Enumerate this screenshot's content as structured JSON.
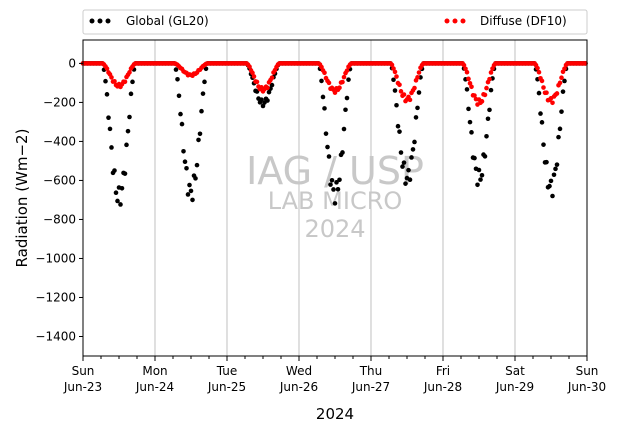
{
  "chart_data": {
    "type": "scatter",
    "xlabel": "2024",
    "ylabel": "Radiation (Wm−2)",
    "ylim": [
      -1500,
      120
    ],
    "yticks": [
      0,
      -200,
      -400,
      -600,
      -800,
      -1000,
      -1200,
      -1400
    ],
    "xlim": [
      "2024-06-23",
      "2024-06-30"
    ],
    "xtick_labels": [
      {
        "day": "Sun",
        "date": "Jun-23"
      },
      {
        "day": "Mon",
        "date": "Jun-24"
      },
      {
        "day": "Tue",
        "date": "Jun-25"
      },
      {
        "day": "Wed",
        "date": "Jun-26"
      },
      {
        "day": "Thu",
        "date": "Jun-27"
      },
      {
        "day": "Fri",
        "date": "Jun-28"
      },
      {
        "day": "Sat",
        "date": "Jun-29"
      },
      {
        "day": "Sun",
        "date": "Jun-30"
      }
    ],
    "grid": "vertical lines at each day",
    "legend_placement": "top, above plot",
    "watermark": [
      "IAG / USP",
      "LAB MICRO",
      "2024"
    ],
    "series": [
      {
        "name": "Global (GL20)",
        "color": "#000000",
        "daily_min": [
          {
            "date": "2024-06-23",
            "min": -690
          },
          {
            "date": "2024-06-24",
            "min": -665
          },
          {
            "date": "2024-06-25",
            "min": -205
          },
          {
            "date": "2024-06-26",
            "min": -670
          },
          {
            "date": "2024-06-27",
            "min": -590
          },
          {
            "date": "2024-06-28",
            "min": -590
          },
          {
            "date": "2024-06-29",
            "min": -640
          }
        ]
      },
      {
        "name": "Diffuse (DF10)",
        "color": "#ff0000",
        "daily_min": [
          {
            "date": "2024-06-23",
            "min": -115
          },
          {
            "date": "2024-06-24",
            "min": -60
          },
          {
            "date": "2024-06-25",
            "min": -135
          },
          {
            "date": "2024-06-26",
            "min": -140
          },
          {
            "date": "2024-06-27",
            "min": -185
          },
          {
            "date": "2024-06-28",
            "min": -200
          },
          {
            "date": "2024-06-29",
            "min": -190
          }
        ]
      }
    ]
  }
}
